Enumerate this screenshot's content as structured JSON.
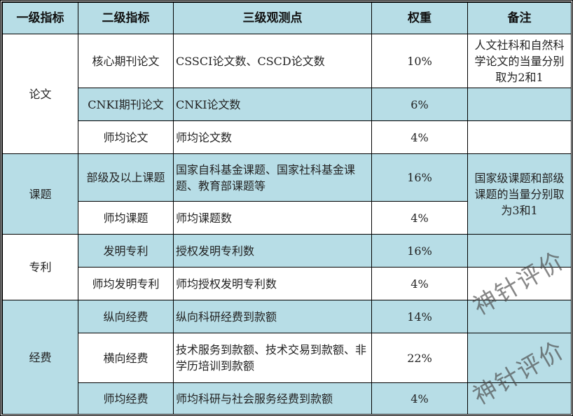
{
  "headers": [
    "一级指标",
    "二级指标",
    "三级观测点",
    "权重",
    "备注"
  ],
  "groups": [
    {
      "name": "论文"
    },
    {
      "name": "课题"
    },
    {
      "name": "专利"
    },
    {
      "name": "经费"
    }
  ],
  "rows": [
    {
      "level2": "核心期刊论文",
      "level3": "CSSCI论文数、CSCD论文数",
      "weight": "10%"
    },
    {
      "level2": "CNKI期刊论文",
      "level3": "CNKI论文数",
      "weight": "6%"
    },
    {
      "level2": "师均论文",
      "level3": "师均论文数",
      "weight": "4%"
    },
    {
      "level2": "部级及以上课题",
      "level3": "国家自科基金课题、国家社科基金课题、教育部课题等",
      "weight": "16%"
    },
    {
      "level2": "师均课题",
      "level3": "师均课题数",
      "weight": "4%"
    },
    {
      "level2": "发明专利",
      "level3": "授权发明专利数",
      "weight": "16%"
    },
    {
      "level2": "师均发明专利",
      "level3": "师均授权发明专利数",
      "weight": "4%"
    },
    {
      "level2": "纵向经费",
      "level3": "纵向科研经费到款额",
      "weight": "14%"
    },
    {
      "level2": "横向经费",
      "level3": "技术服务到款额、技术交易到款额、非学历培训到款额",
      "weight": "22%"
    },
    {
      "level2": "师均经费",
      "level3": "师均科研与社会服务经费到款额",
      "weight": "4%"
    }
  ],
  "notes": [
    "人文社科和自然科学论文的当量分别取为2和1",
    "国家级课题和部级课题的当量分别取为3和1"
  ],
  "watermark": "神针评价",
  "colors": {
    "header_bg": "#b7dde6",
    "alt_bg": "#b7dde6"
  }
}
